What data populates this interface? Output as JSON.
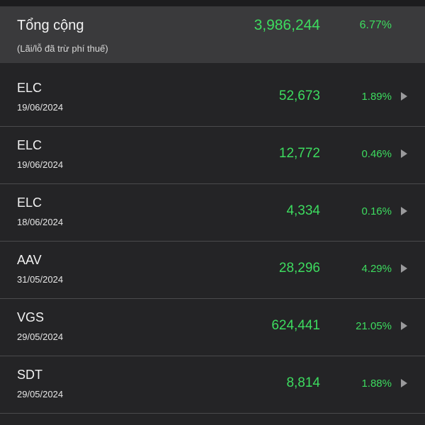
{
  "summary": {
    "title": "Tổng cộng",
    "note": "(Lãi/lỗ đã trừ phí thuế)",
    "total": "3,986,244",
    "percent": "6.77%"
  },
  "rows": [
    {
      "symbol": "ELC",
      "date": "19/06/2024",
      "amount": "52,673",
      "percent": "1.89%"
    },
    {
      "symbol": "ELC",
      "date": "19/06/2024",
      "amount": "12,772",
      "percent": "0.46%"
    },
    {
      "symbol": "ELC",
      "date": "18/06/2024",
      "amount": "4,334",
      "percent": "0.16%"
    },
    {
      "symbol": "AAV",
      "date": "31/05/2024",
      "amount": "28,296",
      "percent": "4.29%"
    },
    {
      "symbol": "VGS",
      "date": "29/05/2024",
      "amount": "624,441",
      "percent": "21.05%"
    },
    {
      "symbol": "SDT",
      "date": "29/05/2024",
      "amount": "8,814",
      "percent": "1.88%"
    }
  ]
}
